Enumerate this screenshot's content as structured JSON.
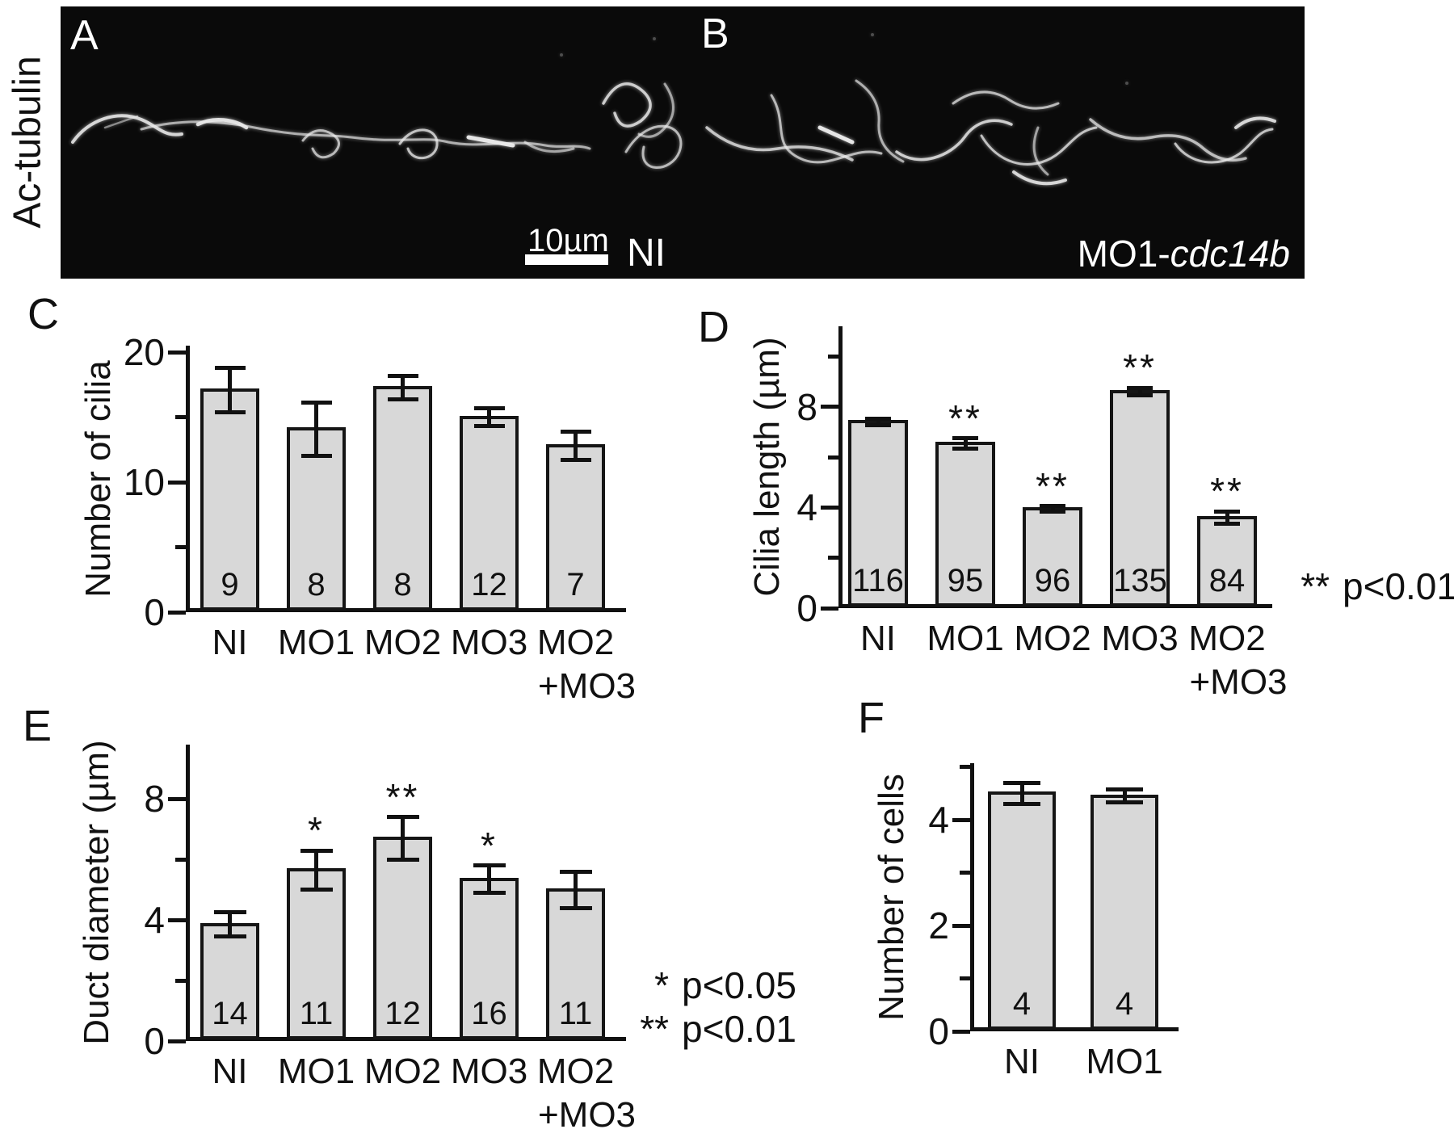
{
  "micrograph": {
    "panel_a_label": "A",
    "panel_b_label": "B",
    "stain_label": "Ac-tubulin",
    "scale_bar_label": "10µm",
    "condition_a_label": "NI",
    "condition_b_prefix": "MO1-",
    "condition_b_gene": "cdc14b"
  },
  "colors": {
    "ink": "#111111",
    "bar_fill": "#d8d8d8",
    "micrograph_bg": "#0a0a0a",
    "filament": "#ececec"
  },
  "chart_data": [
    {
      "panel": "C",
      "type": "bar",
      "title": "",
      "xlabel": "",
      "ylabel": "Number of cilia",
      "categories": [
        "NI",
        "MO1",
        "MO2",
        "MO3",
        "MO2"
      ],
      "categories_line2": [
        null,
        null,
        null,
        null,
        "+MO3"
      ],
      "values": [
        17.1,
        14.1,
        17.3,
        15.0,
        12.8
      ],
      "errors": [
        1.7,
        2.05,
        0.9,
        0.7,
        1.1
      ],
      "n_labels": [
        "9",
        "8",
        "8",
        "12",
        "7"
      ],
      "sig": [
        "",
        "",
        "",
        "",
        ""
      ],
      "yticks_major": [
        0,
        10,
        20
      ],
      "yticks_minor": [
        5,
        15
      ],
      "ylim": [
        0,
        20.5
      ],
      "grid": false,
      "legend": false,
      "annotations": []
    },
    {
      "panel": "D",
      "type": "bar",
      "title": "",
      "xlabel": "",
      "ylabel": "Cilia length (µm)",
      "categories": [
        "NI",
        "MO1",
        "MO2",
        "MO3",
        "MO2"
      ],
      "categories_line2": [
        null,
        null,
        null,
        null,
        "+MO3"
      ],
      "values": [
        7.4,
        6.55,
        3.95,
        8.6,
        3.6
      ],
      "errors": [
        0.12,
        0.2,
        0.1,
        0.15,
        0.25
      ],
      "n_labels": [
        "116",
        "95",
        "96",
        "135",
        "84"
      ],
      "sig": [
        "",
        "**",
        "**",
        "**",
        "**"
      ],
      "yticks_major": [
        0,
        4,
        8
      ],
      "yticks_minor": [
        2,
        6,
        10
      ],
      "ylim": [
        0,
        11.2
      ],
      "grid": false,
      "legend": false,
      "annotations": [
        {
          "stars": "**",
          "text": "p<0.01"
        }
      ]
    },
    {
      "panel": "E",
      "type": "bar",
      "title": "",
      "xlabel": "",
      "ylabel": "Duct diameter (µm)",
      "categories": [
        "NI",
        "MO1",
        "MO2",
        "MO3",
        "MO2"
      ],
      "categories_line2": [
        null,
        null,
        null,
        null,
        "+MO3"
      ],
      "values": [
        3.85,
        5.65,
        6.7,
        5.35,
        5.0
      ],
      "errors": [
        0.4,
        0.65,
        0.7,
        0.45,
        0.6
      ],
      "n_labels": [
        "14",
        "11",
        "12",
        "16",
        "11"
      ],
      "sig": [
        "",
        "*",
        "**",
        "*",
        ""
      ],
      "yticks_major": [
        0,
        4,
        8
      ],
      "yticks_minor": [
        2,
        6
      ],
      "ylim": [
        0,
        9.8
      ],
      "grid": false,
      "legend": false,
      "annotations": [
        {
          "stars": "*",
          "text": "p<0.05"
        },
        {
          "stars": "**",
          "text": "p<0.01"
        }
      ]
    },
    {
      "panel": "F",
      "type": "bar",
      "title": "",
      "xlabel": "",
      "ylabel": "Number of cells",
      "categories": [
        "NI",
        "MO1"
      ],
      "categories_line2": [
        null,
        null
      ],
      "values": [
        4.5,
        4.45
      ],
      "errors": [
        0.2,
        0.12
      ],
      "n_labels": [
        "4",
        "4"
      ],
      "sig": [
        "",
        ""
      ],
      "yticks_major": [
        0,
        2,
        4
      ],
      "yticks_minor": [
        1,
        3,
        5
      ],
      "ylim": [
        0,
        5.07
      ],
      "grid": false,
      "legend": false,
      "annotations": []
    }
  ]
}
